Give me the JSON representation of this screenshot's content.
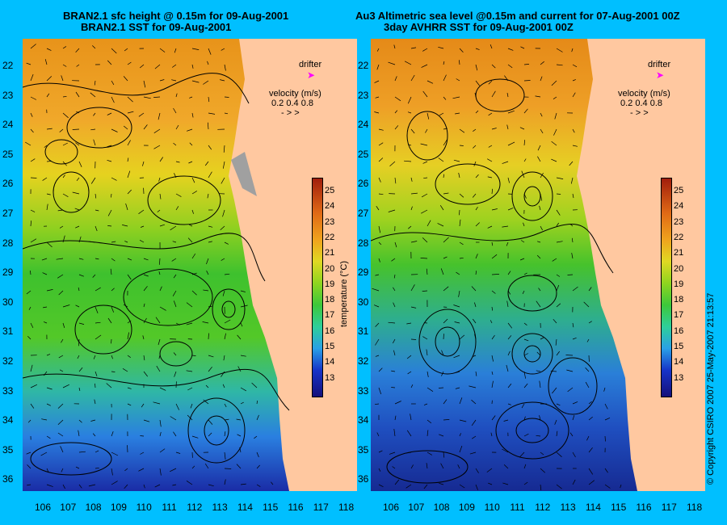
{
  "titles": {
    "left_line1": "BRAN2.1 sfc height @ 0.15m for 09-Aug-2001",
    "left_line2": "BRAN2.1 SST for 09-Aug-2001",
    "right_line1": "Au3 Altimetric sea level  @0.15m and current for 07-Aug-2001 00Z",
    "right_line2": "3day AVHRR SST for 09-Aug-2001 00Z"
  },
  "latitude_labels": [
    "22",
    "23",
    "24",
    "25",
    "26",
    "27",
    "28",
    "29",
    "30",
    "31",
    "32",
    "33",
    "34",
    "35",
    "36"
  ],
  "longitude_labels": [
    "106",
    "107",
    "108",
    "109",
    "110",
    "111",
    "112",
    "113",
    "114",
    "115",
    "116",
    "117",
    "118"
  ],
  "legend": {
    "drifter": "drifter",
    "velocity_title": "velocity (m/s)",
    "velocity_values": "0.2 0.4 0.8",
    "drifter_color": "#FF00FF"
  },
  "colorbar": {
    "title": "temperature (°C)",
    "ticks": [
      "25",
      "24",
      "23",
      "22",
      "21",
      "20",
      "19",
      "18",
      "17",
      "16",
      "15",
      "14",
      "13"
    ]
  },
  "copyright": "© Copyright CSIRO 2007    25-May-2007 21:13:57",
  "colors": {
    "background": "#00BFFF",
    "land": "#FFC8A0",
    "warm": "#F0A020",
    "cool": "#1E50C8"
  }
}
